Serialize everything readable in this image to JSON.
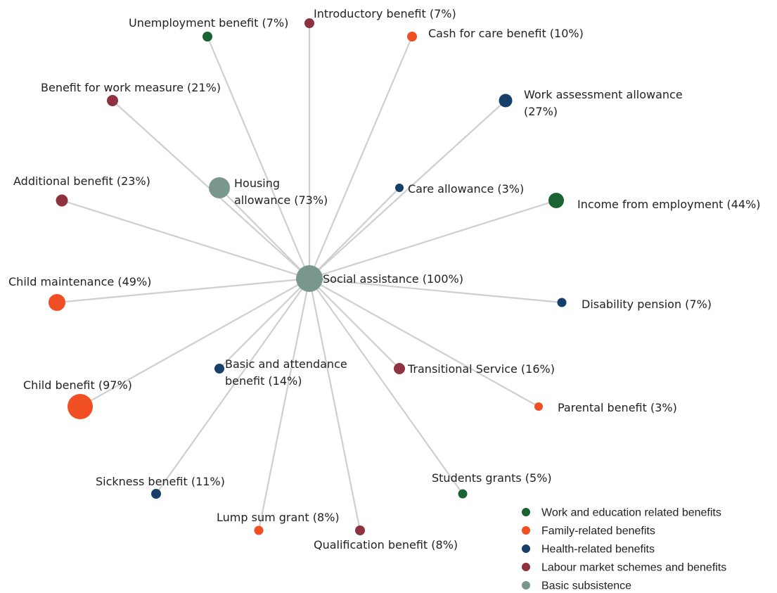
{
  "colors": {
    "work_education": "#1a6332",
    "family": "#f04e23",
    "health": "#173f6b",
    "labour": "#8e3240",
    "basic": "#7a978d",
    "edge": "#cfcfcf"
  },
  "center": {
    "label": "Social assistance (100%)",
    "category": "basic",
    "value": 100
  },
  "nodes": [
    {
      "id": "unemployment",
      "label": "Unemployment benefit (7%)",
      "category": "work_education",
      "value": 7
    },
    {
      "id": "introductory",
      "label": "Introductory benefit (7%)",
      "category": "labour",
      "value": 7
    },
    {
      "id": "cash-for-care",
      "label": "Cash for care benefit (10%)",
      "category": "family",
      "value": 10
    },
    {
      "id": "work-assessment",
      "label": [
        "Work assessment allowance",
        "(27%)"
      ],
      "category": "health",
      "value": 27
    },
    {
      "id": "benefit-work-measure",
      "label": "Benefit for work measure (21%)",
      "category": "labour",
      "value": 21
    },
    {
      "id": "housing",
      "label": [
        "Housing",
        "allowance  (73%)"
      ],
      "category": "basic",
      "value": 73
    },
    {
      "id": "care-allowance",
      "label": "Care allowance (3%)",
      "category": "health",
      "value": 3
    },
    {
      "id": "income-employment",
      "label": "Income from employment (44%)",
      "category": "work_education",
      "value": 44
    },
    {
      "id": "additional",
      "label": "Additional benefit (23%)",
      "category": "labour",
      "value": 23
    },
    {
      "id": "child-maintenance",
      "label": "Child maintenance (49%)",
      "category": "family",
      "value": 49
    },
    {
      "id": "disability",
      "label": "Disability pension (7%)",
      "category": "health",
      "value": 7
    },
    {
      "id": "basic-attendance",
      "label": [
        "Basic and attendance",
        "benefit (14%)"
      ],
      "category": "health",
      "value": 14
    },
    {
      "id": "transitional",
      "label": "Transitional Service (16%)",
      "category": "labour",
      "value": 16
    },
    {
      "id": "child-benefit",
      "label": "Child benefit (97%)",
      "category": "family",
      "value": 97
    },
    {
      "id": "parental",
      "label": "Parental benefit (3%)",
      "category": "family",
      "value": 3
    },
    {
      "id": "sickness",
      "label": "Sickness benefit (11%)",
      "category": "health",
      "value": 11
    },
    {
      "id": "students",
      "label": "Students grants (5%)",
      "category": "work_education",
      "value": 5
    },
    {
      "id": "lump-sum",
      "label": "Lump sum grant (8%)",
      "category": "family",
      "value": 8
    },
    {
      "id": "qualification",
      "label": "Qualification benefit (8%)",
      "category": "labour",
      "value": 8
    }
  ],
  "legend": [
    {
      "label": "Work and education related benefits",
      "category": "work_education"
    },
    {
      "label": "Family-related benefits",
      "category": "family"
    },
    {
      "label": "Health-related benefits",
      "category": "health"
    },
    {
      "label": "Labour market schemes and benefits",
      "category": "labour"
    },
    {
      "label": "Basic subsistence",
      "category": "basic"
    }
  ]
}
